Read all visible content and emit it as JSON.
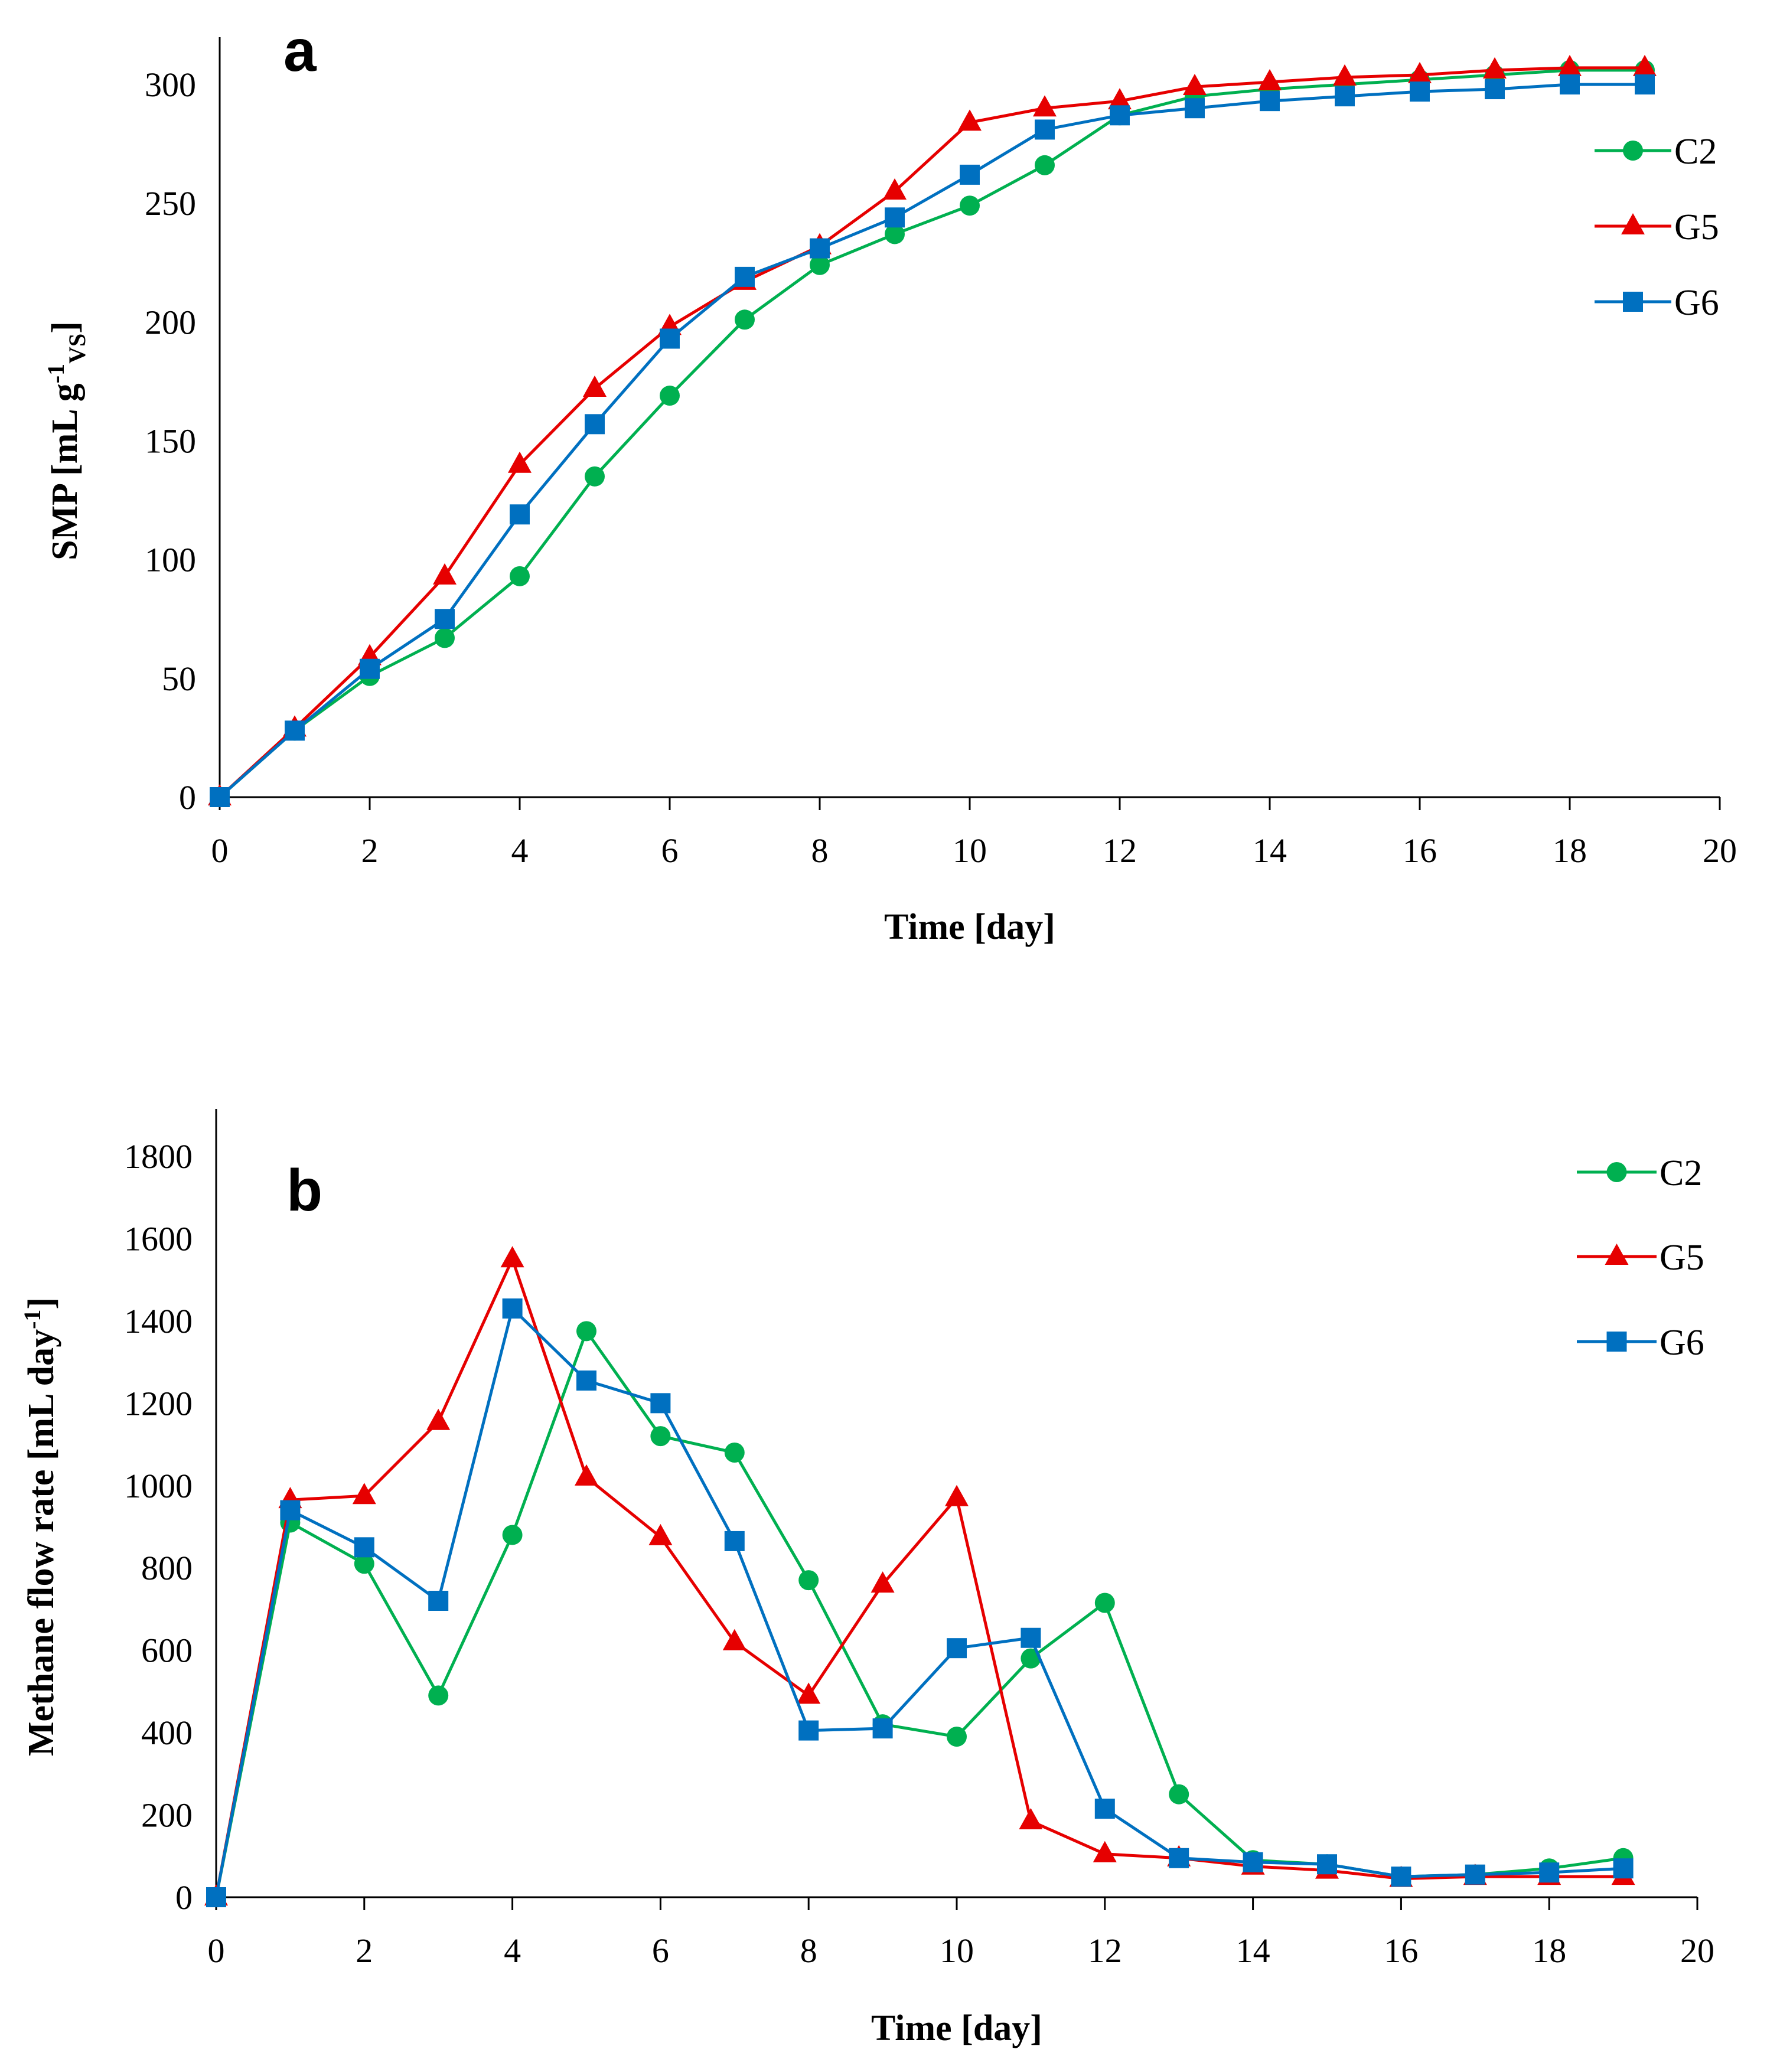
{
  "colors": {
    "C2": "#00b050",
    "G5": "#e60000",
    "G6": "#0070c0"
  },
  "chart_data": [
    {
      "type": "line",
      "panel_label": "a",
      "title": "",
      "xlabel": "Time [day]",
      "ylabel_main": "SMP [mL g",
      "ylabel_sup": "-1",
      "ylabel_sub": "VS",
      "ylabel_end": "]",
      "xlim": [
        0,
        20
      ],
      "ylim": [
        0,
        300
      ],
      "xticks": [
        "0",
        "2",
        "4",
        "6",
        "8",
        "10",
        "12",
        "14",
        "16",
        "18",
        "20"
      ],
      "yticks": [
        "0",
        "50",
        "100",
        "150",
        "200",
        "250",
        "300"
      ],
      "legend_position": "right",
      "x": [
        0,
        1,
        2,
        3,
        4,
        5,
        6,
        7,
        8,
        9,
        10,
        11,
        12,
        13,
        14,
        15,
        16,
        17,
        18,
        19
      ],
      "series": [
        {
          "name": "C2",
          "marker": "circle",
          "values": [
            0,
            28,
            51,
            67,
            93,
            135,
            169,
            201,
            224,
            237,
            249,
            266,
            287,
            295,
            298,
            300,
            302,
            304,
            306,
            306
          ]
        },
        {
          "name": "G5",
          "marker": "triangle",
          "values": [
            0,
            29,
            59,
            93,
            140,
            172,
            198,
            217,
            232,
            255,
            284,
            290,
            293,
            299,
            301,
            303,
            304,
            306,
            307,
            307
          ]
        },
        {
          "name": "G6",
          "marker": "square",
          "values": [
            0,
            28,
            54,
            75,
            119,
            157,
            193,
            219,
            231,
            244,
            262,
            281,
            287,
            290,
            293,
            295,
            297,
            298,
            300,
            300
          ]
        }
      ]
    },
    {
      "type": "line",
      "panel_label": "b",
      "title": "",
      "xlabel": "Time [day]",
      "ylabel_main": "Methane flow rate [mL day",
      "ylabel_sup": "-1",
      "ylabel_sub": "",
      "ylabel_end": "]",
      "xlim": [
        0,
        20
      ],
      "ylim": [
        0,
        1800
      ],
      "xticks": [
        "0",
        "2",
        "4",
        "6",
        "8",
        "10",
        "12",
        "14",
        "16",
        "18",
        "20"
      ],
      "yticks": [
        "0",
        "200",
        "400",
        "600",
        "800",
        "1000",
        "1200",
        "1400",
        "1600",
        "1800"
      ],
      "legend_position": "top-right",
      "x": [
        0,
        1,
        2,
        3,
        4,
        5,
        6,
        7,
        8,
        9,
        10,
        11,
        12,
        13,
        14,
        15,
        16,
        17,
        18,
        19
      ],
      "series": [
        {
          "name": "C2",
          "marker": "circle",
          "values": [
            0,
            910,
            810,
            490,
            880,
            1375,
            1120,
            1080,
            770,
            420,
            390,
            580,
            715,
            250,
            90,
            80,
            50,
            55,
            70,
            95
          ]
        },
        {
          "name": "G5",
          "marker": "triangle",
          "values": [
            0,
            965,
            975,
            1155,
            1550,
            1020,
            875,
            620,
            490,
            760,
            970,
            185,
            105,
            95,
            75,
            65,
            45,
            50,
            50,
            50
          ]
        },
        {
          "name": "G6",
          "marker": "square",
          "values": [
            0,
            940,
            850,
            720,
            1430,
            1255,
            1200,
            865,
            405,
            410,
            605,
            630,
            215,
            95,
            85,
            80,
            50,
            55,
            60,
            70
          ]
        }
      ]
    }
  ]
}
